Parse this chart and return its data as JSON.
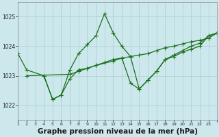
{
  "bg_color": "#cce8ec",
  "grid_color": "#b8d8dc",
  "line_color": "#1a6e1a",
  "marker_color": "#1a6e1a",
  "xlabel": "Graphe pression niveau de la mer (hPa)",
  "xlabel_fontsize": 7.5,
  "ylabel_ticks": [
    1022,
    1023,
    1024,
    1025
  ],
  "xlim": [
    0,
    23
  ],
  "ylim": [
    1021.5,
    1025.5
  ],
  "series1_x": [
    0,
    1,
    3,
    4,
    5,
    6,
    7,
    8,
    9,
    11,
    12,
    13,
    14,
    15,
    16,
    17,
    18,
    19,
    20,
    21,
    22,
    23
  ],
  "series1_y": [
    1023.75,
    1023.2,
    1023.0,
    1022.2,
    1022.35,
    1022.9,
    1023.2,
    1023.25,
    1023.35,
    1023.5,
    1023.6,
    1022.75,
    1022.55,
    1022.85,
    1023.15,
    1023.55,
    1023.65,
    1023.8,
    1023.9,
    1024.0,
    1024.35,
    1024.45
  ],
  "series2_x": [
    3,
    4,
    5,
    6,
    7,
    8,
    9,
    10,
    11,
    12,
    13
  ],
  "series2_y": [
    1023.0,
    1022.2,
    1022.35,
    1023.2,
    1023.75,
    1024.05,
    1024.35,
    1025.1,
    1024.45,
    1024.0,
    1023.65
  ],
  "series3_x": [
    1,
    6,
    7,
    8,
    9,
    10,
    11,
    12,
    13,
    14,
    15,
    16,
    17,
    18,
    19,
    20,
    21,
    22,
    23
  ],
  "series3_y": [
    1023.0,
    1023.05,
    1023.15,
    1023.25,
    1023.35,
    1023.45,
    1023.55,
    1023.6,
    1023.65,
    1023.7,
    1023.75,
    1023.85,
    1023.95,
    1024.0,
    1024.08,
    1024.15,
    1024.2,
    1024.27,
    1024.45
  ],
  "series4_x": [
    13,
    14,
    15,
    16,
    17,
    18,
    19,
    20,
    21,
    22,
    23
  ],
  "series4_y": [
    1023.65,
    1022.55,
    1022.85,
    1023.15,
    1023.55,
    1023.7,
    1023.85,
    1024.0,
    1024.1,
    1024.35,
    1024.45
  ]
}
